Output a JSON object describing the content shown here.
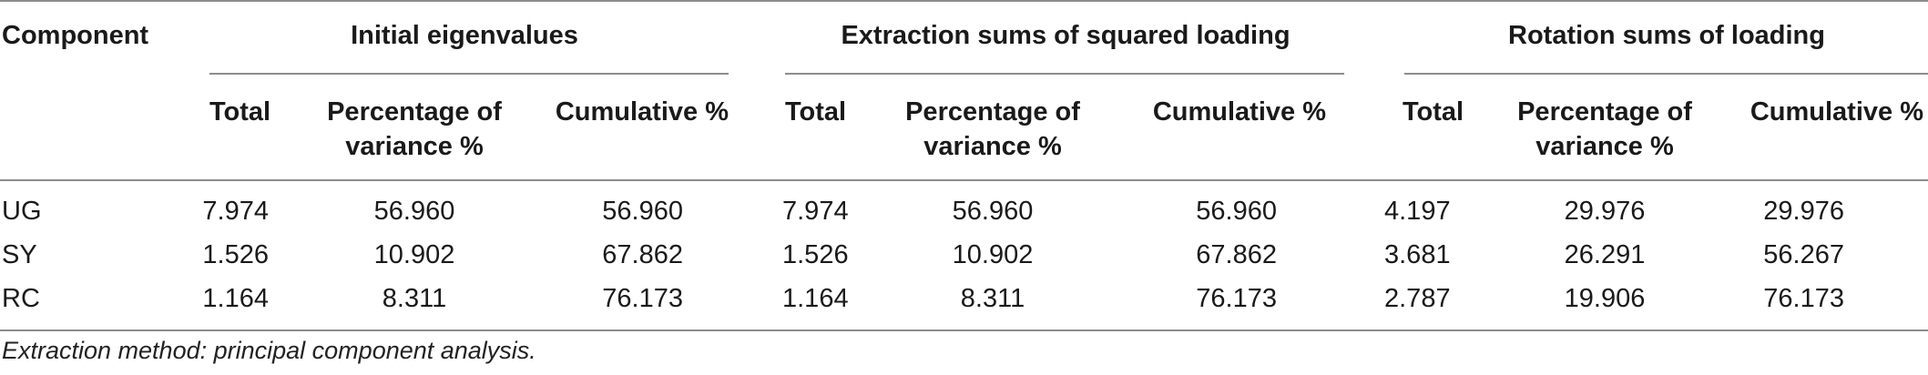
{
  "table": {
    "corner_header": "Component",
    "groups": [
      "Initial eigenvalues",
      "Extraction sums of squared loading",
      "Rotation sums of loading"
    ],
    "subheaders": {
      "total": "Total",
      "pct_line1": "Percentage of",
      "pct_line2": "variance %",
      "cumulative": "Cumulative %"
    },
    "rows": [
      {
        "label": "UG",
        "values": [
          "7.974",
          "56.960",
          "56.960",
          "7.974",
          "56.960",
          "56.960",
          "4.197",
          "29.976",
          "29.976"
        ]
      },
      {
        "label": "SY",
        "values": [
          "1.526",
          "10.902",
          "67.862",
          "1.526",
          "10.902",
          "67.862",
          "3.681",
          "26.291",
          "56.267"
        ]
      },
      {
        "label": "RC",
        "values": [
          "1.164",
          "8.311",
          "76.173",
          "1.164",
          "8.311",
          "76.173",
          "2.787",
          "19.906",
          "76.173"
        ]
      }
    ],
    "footnote": "Extraction method: principal component analysis."
  }
}
